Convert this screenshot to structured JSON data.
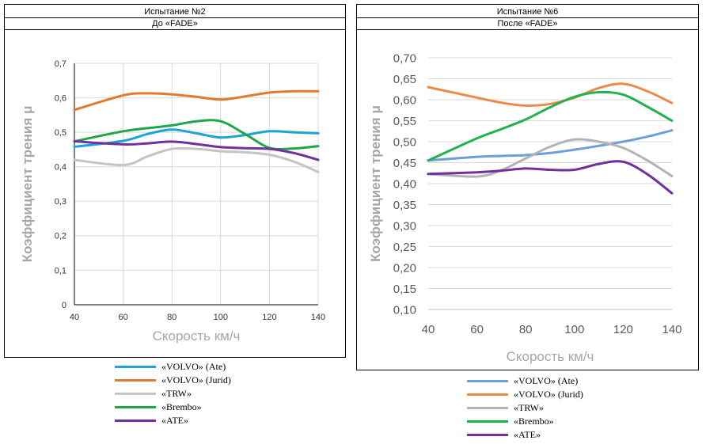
{
  "chart_data": [
    {
      "type": "line",
      "header_line1": "Испытание №2",
      "header_line2": "До «FADE»",
      "xlabel": "Скорость км/ч",
      "ylabel": "Коэффициент трения μ",
      "x_ticks": [
        "40",
        "60",
        "80",
        "100",
        "120",
        "140"
      ],
      "y_ticks": [
        "0",
        "0,1",
        "0,2",
        "0,3",
        "0,4",
        "0,5",
        "0,6",
        "0,7"
      ],
      "xlim": [
        40,
        140
      ],
      "ylim": [
        0,
        0.7
      ],
      "grid": true,
      "x": [
        40,
        60,
        70,
        80,
        90,
        100,
        110,
        120,
        130,
        140
      ],
      "series": [
        {
          "name": "«VOLVO» (Ate)",
          "color": "#1aa3d9",
          "values": [
            0.458,
            0.475,
            0.495,
            0.508,
            0.497,
            0.485,
            0.492,
            0.503,
            0.5,
            0.497
          ]
        },
        {
          "name": "«VOLVO» (Jurid)",
          "color": "#e07b2e",
          "values": [
            0.565,
            0.607,
            0.613,
            0.61,
            0.603,
            0.595,
            0.604,
            0.615,
            0.619,
            0.619
          ]
        },
        {
          "name": "«TRW»",
          "color": "#c4c4c4",
          "values": [
            0.42,
            0.405,
            0.43,
            0.452,
            0.452,
            0.445,
            0.442,
            0.435,
            0.415,
            0.385
          ]
        },
        {
          "name": "«Brembo»",
          "color": "#1fa64a",
          "values": [
            0.474,
            0.503,
            0.512,
            0.52,
            0.532,
            0.532,
            0.495,
            0.455,
            0.453,
            0.46
          ]
        },
        {
          "name": "«ATE»",
          "color": "#7030a0",
          "values": [
            0.474,
            0.465,
            0.468,
            0.473,
            0.466,
            0.457,
            0.454,
            0.452,
            0.44,
            0.42
          ]
        }
      ]
    },
    {
      "type": "line",
      "header_line1": "Испытание №6",
      "header_line2": "После «FADE»",
      "xlabel": "Скорость км/ч",
      "ylabel": "Коэффициент трения μ",
      "x_ticks": [
        "40",
        "60",
        "80",
        "100",
        "120",
        "140"
      ],
      "y_ticks": [
        "0,10",
        "0,15",
        "0,20",
        "0,25",
        "0,30",
        "0,35",
        "0,40",
        "0,45",
        "0,50",
        "0,55",
        "0,60",
        "0,65",
        "0,70"
      ],
      "xlim": [
        40,
        140
      ],
      "ylim": [
        0.1,
        0.7
      ],
      "grid": true,
      "x": [
        40,
        60,
        70,
        80,
        90,
        100,
        110,
        120,
        130,
        140
      ],
      "series": [
        {
          "name": "«VOLVO» (Ate)",
          "color": "#6a9fd8",
          "values": [
            0.455,
            0.464,
            0.466,
            0.468,
            0.473,
            0.481,
            0.49,
            0.5,
            0.512,
            0.527
          ]
        },
        {
          "name": "«VOLVO» (Jurid)",
          "color": "#ec8a4a",
          "values": [
            0.63,
            0.605,
            0.593,
            0.586,
            0.59,
            0.605,
            0.628,
            0.638,
            0.62,
            0.592
          ]
        },
        {
          "name": "«TRW»",
          "color": "#b3b3b3",
          "values": [
            0.423,
            0.417,
            0.432,
            0.46,
            0.488,
            0.505,
            0.5,
            0.485,
            0.455,
            0.418
          ]
        },
        {
          "name": "«Brembo»",
          "color": "#22b14c",
          "values": [
            0.455,
            0.508,
            0.53,
            0.553,
            0.582,
            0.607,
            0.618,
            0.612,
            0.583,
            0.55
          ]
        },
        {
          "name": "«ATE»",
          "color": "#7030a0",
          "values": [
            0.423,
            0.427,
            0.431,
            0.436,
            0.433,
            0.433,
            0.447,
            0.452,
            0.422,
            0.377
          ]
        }
      ]
    }
  ]
}
